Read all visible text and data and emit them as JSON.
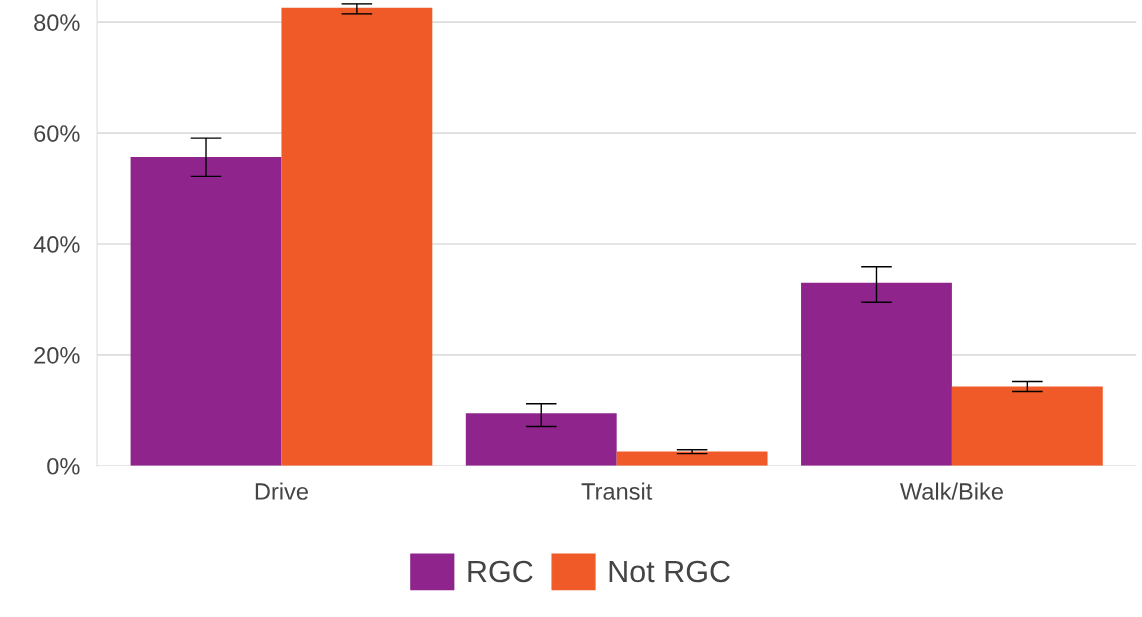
{
  "chart_data": {
    "type": "bar",
    "categories": [
      "Drive",
      "Transit",
      "Walk/Bike"
    ],
    "series": [
      {
        "name": "RGC",
        "color": "#8e248c",
        "values": [
          55.7,
          9.5,
          33.0
        ],
        "errors": [
          [
            52.2,
            59.1
          ],
          [
            7.1,
            11.2
          ],
          [
            29.5,
            35.9
          ]
        ]
      },
      {
        "name": "Not RGC",
        "color": "#f05a28",
        "values": [
          82.6,
          2.6,
          14.3
        ],
        "errors": [
          [
            81.5,
            83.3
          ],
          [
            2.2,
            2.9
          ],
          [
            13.4,
            15.2
          ]
        ]
      }
    ],
    "ylim": [
      0,
      84
    ],
    "yticks": [
      {
        "value": 0,
        "label": "0%"
      },
      {
        "value": 20,
        "label": "20%"
      },
      {
        "value": 40,
        "label": "40%"
      },
      {
        "value": 60,
        "label": "60%"
      },
      {
        "value": 80,
        "label": "80%"
      }
    ],
    "grid": "y",
    "legend": "bottom"
  }
}
